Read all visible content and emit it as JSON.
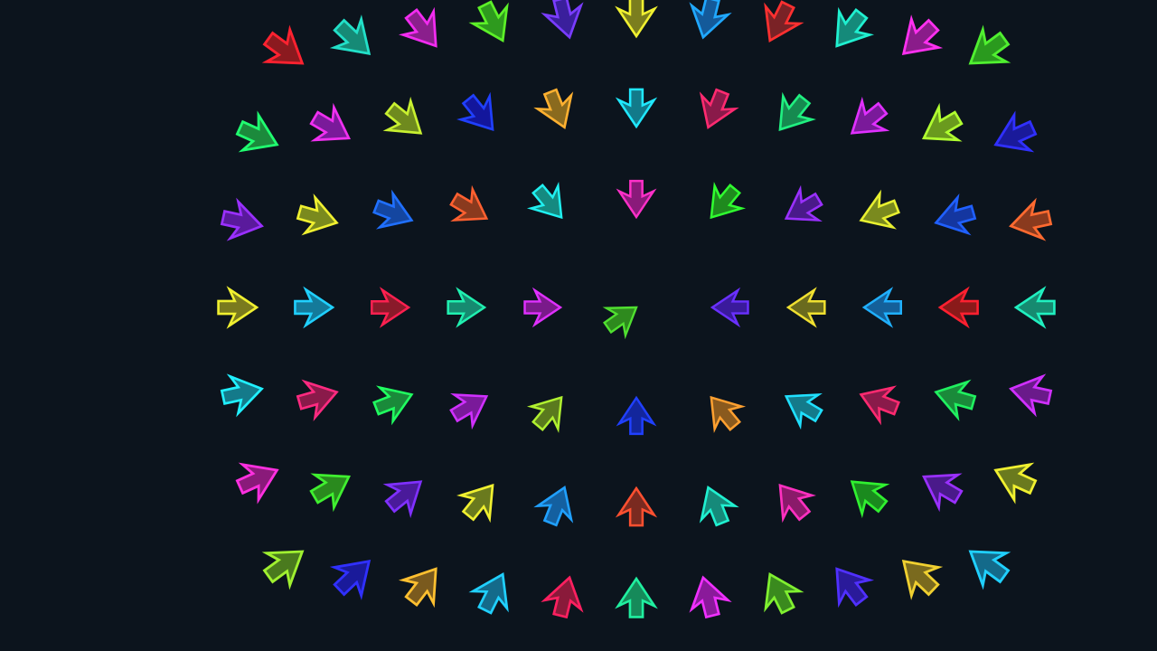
{
  "scene": {
    "background": "#0c141d",
    "description_text": "",
    "arrows": [
      {
        "row": 0,
        "col": 0,
        "fill": "#8b1a1f",
        "stroke": "#ff2230",
        "points_to": "right-down"
      },
      {
        "row": 0,
        "col": 1,
        "fill": "#168a76",
        "stroke": "#22e0c8",
        "points_to": "right-down"
      },
      {
        "row": 0,
        "col": 2,
        "fill": "#8a1f8c",
        "stroke": "#f22cf0",
        "points_to": "right-down"
      },
      {
        "row": 0,
        "col": 3,
        "fill": "#2e9a1e",
        "stroke": "#5cf028",
        "points_to": "right-down"
      },
      {
        "row": 0,
        "col": 4,
        "fill": "#3a1f9c",
        "stroke": "#7a3cff",
        "points_to": "down"
      },
      {
        "row": 0,
        "col": 5,
        "fill": "#7b7e1e",
        "stroke": "#f0f030",
        "points_to": "down"
      },
      {
        "row": 0,
        "col": 6,
        "fill": "#145a9a",
        "stroke": "#20a8ff",
        "points_to": "down"
      },
      {
        "row": 0,
        "col": 7,
        "fill": "#7a2226",
        "stroke": "#ff3030",
        "points_to": "down"
      },
      {
        "row": 0,
        "col": 8,
        "fill": "#158a7a",
        "stroke": "#20f0d0",
        "points_to": "left-down"
      },
      {
        "row": 0,
        "col": 9,
        "fill": "#8a1c8a",
        "stroke": "#ff30f0",
        "points_to": "left-down"
      },
      {
        "row": 0,
        "col": 10,
        "fill": "#2a9a1e",
        "stroke": "#50f030",
        "points_to": "left-down"
      },
      {
        "row": 1,
        "col": 0,
        "fill": "#1c8a3c",
        "stroke": "#20ff70",
        "points_to": "right"
      },
      {
        "row": 1,
        "col": 1,
        "fill": "#7a1a9a",
        "stroke": "#f030f0",
        "points_to": "right"
      },
      {
        "row": 1,
        "col": 2,
        "fill": "#6f8a1e",
        "stroke": "#c8f030",
        "points_to": "right"
      },
      {
        "row": 1,
        "col": 3,
        "fill": "#13169c",
        "stroke": "#2040ff",
        "points_to": "right-down"
      },
      {
        "row": 1,
        "col": 4,
        "fill": "#8a6a1e",
        "stroke": "#ffb030",
        "points_to": "right-down"
      },
      {
        "row": 1,
        "col": 5,
        "fill": "#127a8a",
        "stroke": "#20e8ff",
        "points_to": "down"
      },
      {
        "row": 1,
        "col": 6,
        "fill": "#8a1a4a",
        "stroke": "#ff2a70",
        "points_to": "down"
      },
      {
        "row": 1,
        "col": 7,
        "fill": "#168a50",
        "stroke": "#20f080",
        "points_to": "left-down"
      },
      {
        "row": 1,
        "col": 8,
        "fill": "#7a1a9a",
        "stroke": "#e030ff",
        "points_to": "left-down"
      },
      {
        "row": 1,
        "col": 9,
        "fill": "#6a9a1e",
        "stroke": "#b0ff30",
        "points_to": "left-down"
      },
      {
        "row": 1,
        "col": 10,
        "fill": "#1a1a9a",
        "stroke": "#3030ff",
        "points_to": "left"
      },
      {
        "row": 2,
        "col": 0,
        "fill": "#5a1a9c",
        "stroke": "#9a30ff",
        "points_to": "right"
      },
      {
        "row": 2,
        "col": 1,
        "fill": "#7a8a1e",
        "stroke": "#f0f030",
        "points_to": "right"
      },
      {
        "row": 2,
        "col": 2,
        "fill": "#1446a0",
        "stroke": "#2070ff",
        "points_to": "right"
      },
      {
        "row": 2,
        "col": 3,
        "fill": "#8a3a1e",
        "stroke": "#ff6030",
        "points_to": "right"
      },
      {
        "row": 2,
        "col": 4,
        "fill": "#158a80",
        "stroke": "#20f0f0",
        "points_to": "right"
      },
      {
        "row": 2,
        "col": 5,
        "fill": "#8a1a7a",
        "stroke": "#ff30c8",
        "points_to": "right-down"
      },
      {
        "row": 2,
        "col": 6,
        "fill": "#1f8a1e",
        "stroke": "#30ff30",
        "points_to": "left-down"
      },
      {
        "row": 2,
        "col": 7,
        "fill": "#4a1a8a",
        "stroke": "#9a30ff",
        "points_to": "left"
      },
      {
        "row": 2,
        "col": 8,
        "fill": "#7a8a1e",
        "stroke": "#e8f030",
        "points_to": "left"
      },
      {
        "row": 2,
        "col": 9,
        "fill": "#1436a0",
        "stroke": "#2060ff",
        "points_to": "left"
      },
      {
        "row": 2,
        "col": 10,
        "fill": "#8a3a1e",
        "stroke": "#ff6a30",
        "points_to": "left"
      },
      {
        "row": 3,
        "col": 0,
        "fill": "#7a7a1e",
        "stroke": "#f0f030",
        "points_to": "right"
      },
      {
        "row": 3,
        "col": 1,
        "fill": "#147a9a",
        "stroke": "#20d0ff",
        "points_to": "right"
      },
      {
        "row": 3,
        "col": 2,
        "fill": "#8a1a2a",
        "stroke": "#ff2050",
        "points_to": "right"
      },
      {
        "row": 3,
        "col": 3,
        "fill": "#168a70",
        "stroke": "#20f0b0",
        "points_to": "right"
      },
      {
        "row": 3,
        "col": 4,
        "fill": "#7a1a8a",
        "stroke": "#e030ff",
        "points_to": "right"
      },
      {
        "row": 3,
        "col": 5,
        "fill": "#2e8a1e",
        "stroke": "#50e030",
        "points_to": "right-up"
      },
      {
        "row": 3,
        "col": 6,
        "fill": "#3a1a9c",
        "stroke": "#6a30ff",
        "points_to": "left-up"
      },
      {
        "row": 3,
        "col": 7,
        "fill": "#6a6a1e",
        "stroke": "#f0e030",
        "points_to": "left"
      },
      {
        "row": 3,
        "col": 8,
        "fill": "#14609a",
        "stroke": "#20b0ff",
        "points_to": "left"
      },
      {
        "row": 3,
        "col": 9,
        "fill": "#8a1a1a",
        "stroke": "#ff2030",
        "points_to": "left"
      },
      {
        "row": 3,
        "col": 10,
        "fill": "#168a70",
        "stroke": "#20f0c0",
        "points_to": "left"
      },
      {
        "row": 4,
        "col": 0,
        "fill": "#147a8a",
        "stroke": "#20f0ff",
        "points_to": "right"
      },
      {
        "row": 4,
        "col": 1,
        "fill": "#8a1a4a",
        "stroke": "#ff2a80",
        "points_to": "right"
      },
      {
        "row": 4,
        "col": 2,
        "fill": "#1a8a3a",
        "stroke": "#20ff60",
        "points_to": "right"
      },
      {
        "row": 4,
        "col": 3,
        "fill": "#7a1a9a",
        "stroke": "#d030ff",
        "points_to": "right-up"
      },
      {
        "row": 4,
        "col": 4,
        "fill": "#5a7a1e",
        "stroke": "#b0f030",
        "points_to": "right-up"
      },
      {
        "row": 4,
        "col": 5,
        "fill": "#13269c",
        "stroke": "#2040ff",
        "points_to": "up"
      },
      {
        "row": 4,
        "col": 6,
        "fill": "#8a5a1e",
        "stroke": "#ffa030",
        "points_to": "up"
      },
      {
        "row": 4,
        "col": 7,
        "fill": "#147a8a",
        "stroke": "#20e0ff",
        "points_to": "left-up"
      },
      {
        "row": 4,
        "col": 8,
        "fill": "#8a1a4a",
        "stroke": "#ff2a70",
        "points_to": "left-up"
      },
      {
        "row": 4,
        "col": 9,
        "fill": "#1a8a3a",
        "stroke": "#20f060",
        "points_to": "left"
      },
      {
        "row": 4,
        "col": 10,
        "fill": "#6a1a8a",
        "stroke": "#d030ff",
        "points_to": "left"
      },
      {
        "row": 5,
        "col": 0,
        "fill": "#8a1a7a",
        "stroke": "#ff30e0",
        "points_to": "right"
      },
      {
        "row": 5,
        "col": 1,
        "fill": "#2a8a1e",
        "stroke": "#40f030",
        "points_to": "right-up"
      },
      {
        "row": 5,
        "col": 2,
        "fill": "#4a1a9a",
        "stroke": "#8030ff",
        "points_to": "right-up"
      },
      {
        "row": 5,
        "col": 3,
        "fill": "#6a7a1e",
        "stroke": "#f0f030",
        "points_to": "right-up"
      },
      {
        "row": 5,
        "col": 4,
        "fill": "#1460a0",
        "stroke": "#20a0ff",
        "points_to": "up"
      },
      {
        "row": 5,
        "col": 5,
        "fill": "#7a2a20",
        "stroke": "#ff5030",
        "points_to": "up"
      },
      {
        "row": 5,
        "col": 6,
        "fill": "#168a7a",
        "stroke": "#20f0d0",
        "points_to": "up"
      },
      {
        "row": 5,
        "col": 7,
        "fill": "#8a1a6a",
        "stroke": "#ff30c0",
        "points_to": "up"
      },
      {
        "row": 5,
        "col": 8,
        "fill": "#1a8a1e",
        "stroke": "#30f030",
        "points_to": "left-up"
      },
      {
        "row": 5,
        "col": 9,
        "fill": "#4a1a8a",
        "stroke": "#9a30ff",
        "points_to": "left-up"
      },
      {
        "row": 5,
        "col": 10,
        "fill": "#6a7a1e",
        "stroke": "#f0f030",
        "points_to": "left-up"
      },
      {
        "row": 6,
        "col": 0,
        "fill": "#4a7a1e",
        "stroke": "#a0f030",
        "points_to": "right-up"
      },
      {
        "row": 6,
        "col": 1,
        "fill": "#1a1a9a",
        "stroke": "#3030ff",
        "points_to": "right-up"
      },
      {
        "row": 6,
        "col": 2,
        "fill": "#7a5a1e",
        "stroke": "#ffc030",
        "points_to": "right-up"
      },
      {
        "row": 6,
        "col": 3,
        "fill": "#146a8a",
        "stroke": "#20d0ff",
        "points_to": "up"
      },
      {
        "row": 6,
        "col": 4,
        "fill": "#8a1a3a",
        "stroke": "#ff2060",
        "points_to": "up"
      },
      {
        "row": 6,
        "col": 5,
        "fill": "#168a5a",
        "stroke": "#20f0a0",
        "points_to": "up"
      },
      {
        "row": 6,
        "col": 6,
        "fill": "#8a1a9a",
        "stroke": "#f030ff",
        "points_to": "up"
      },
      {
        "row": 6,
        "col": 7,
        "fill": "#3a8a1e",
        "stroke": "#80f030",
        "points_to": "up"
      },
      {
        "row": 6,
        "col": 8,
        "fill": "#2a1a9a",
        "stroke": "#5030ff",
        "points_to": "left-up"
      },
      {
        "row": 6,
        "col": 9,
        "fill": "#7a6a1e",
        "stroke": "#f0d030",
        "points_to": "left-up"
      },
      {
        "row": 6,
        "col": 10,
        "fill": "#146a8a",
        "stroke": "#20d0ff",
        "points_to": "left-up"
      }
    ]
  }
}
